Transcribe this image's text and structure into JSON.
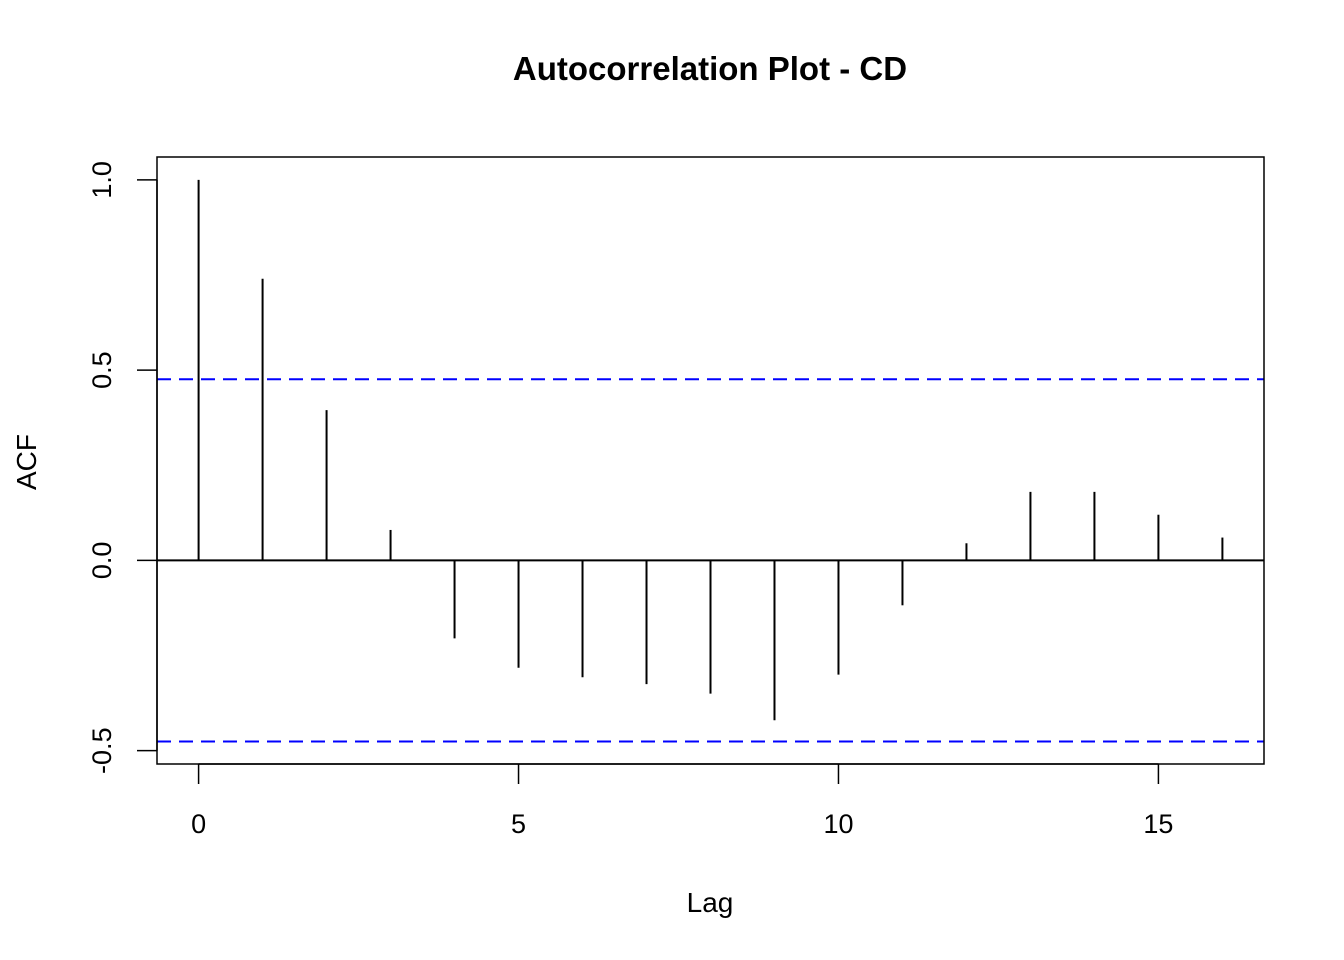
{
  "chart_data": {
    "type": "bar",
    "title": "Autocorrelation Plot - CD",
    "xlabel": "Lag",
    "ylabel": "ACF",
    "x": [
      0,
      1,
      2,
      3,
      4,
      5,
      6,
      7,
      8,
      9,
      10,
      11,
      12,
      13,
      14,
      15,
      16
    ],
    "values": [
      1.0,
      0.74,
      0.395,
      0.08,
      -0.205,
      -0.282,
      -0.307,
      -0.325,
      -0.35,
      -0.42,
      -0.3,
      -0.118,
      0.045,
      0.18,
      0.18,
      0.12,
      0.06
    ],
    "confidence_bound": 0.476,
    "xlim": [
      -0.65,
      16.65
    ],
    "ylim": [
      -0.535,
      1.06
    ],
    "x_ticks": [
      0,
      5,
      10,
      15
    ],
    "y_ticks": [
      -0.5,
      0.0,
      0.5,
      1.0
    ],
    "x_tick_labels": [
      "0",
      "5",
      "10",
      "15"
    ],
    "y_tick_labels": [
      "-0.5",
      "0.0",
      "0.5",
      "1.0"
    ],
    "grid": false,
    "colors": {
      "bars": "#000000",
      "zero_line": "#000000",
      "confidence": "#0000ff"
    }
  }
}
